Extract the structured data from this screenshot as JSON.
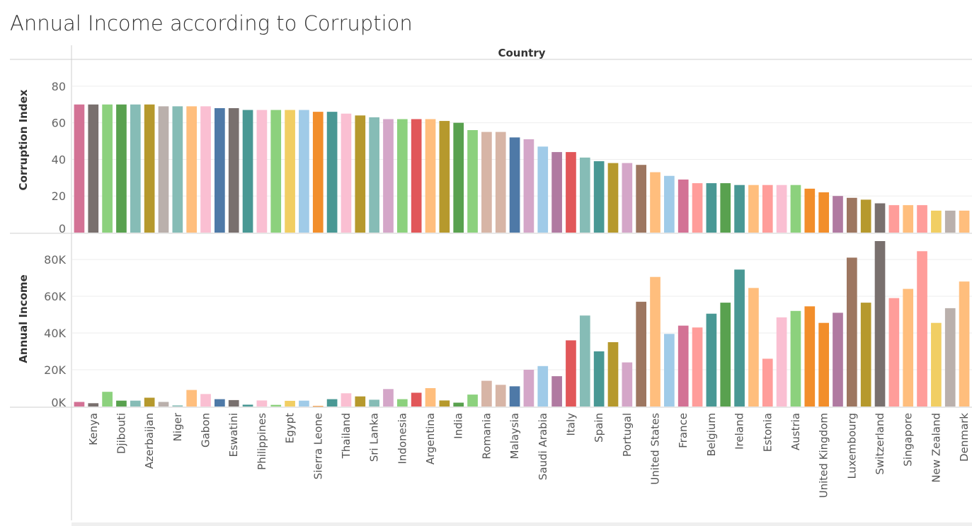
{
  "chart_data": {
    "type": "bar",
    "title": "Annual Income according to Corruption",
    "column_header": "Country",
    "ylabel_top": "Corruption Index",
    "ylabel_bottom": "Annual Income",
    "top_yticks": [
      "0",
      "20",
      "40",
      "60",
      "80"
    ],
    "bottom_yticks": [
      "0K",
      "20K",
      "40K",
      "60K",
      "80K"
    ],
    "top_ylim": [
      0,
      90
    ],
    "bottom_ylim": [
      0,
      90000
    ],
    "labeled_countries": [
      "Kenya",
      "Djibouti",
      "Azerbaijan",
      "Niger",
      "Gabon",
      "Eswatini",
      "Philippines",
      "Egypt",
      "Sierra Leone",
      "Thailand",
      "Sri Lanka",
      "Indonesia",
      "Argentina",
      "India",
      "Romania",
      "Malaysia",
      "Saudi Arabia",
      "Italy",
      "Spain",
      "Portugal",
      "United States",
      "France",
      "Belgium",
      "Ireland",
      "Estonia",
      "Austria",
      "United Kingdom",
      "Luxembourg",
      "Switzerland",
      "Singapore",
      "New Zealand",
      "Denmark"
    ],
    "bars": [
      {
        "corruption": 70,
        "income": 2500,
        "color": "#d37295"
      },
      {
        "corruption": 70,
        "income": 1800,
        "color": "#79706e"
      },
      {
        "corruption": 70,
        "income": 8000,
        "color": "#8cd17d"
      },
      {
        "corruption": 70,
        "income": 3200,
        "color": "#59a14f"
      },
      {
        "corruption": 70,
        "income": 3200,
        "color": "#86bcb6"
      },
      {
        "corruption": 70,
        "income": 4800,
        "color": "#b6992d"
      },
      {
        "corruption": 69,
        "income": 2500,
        "color": "#bab0ac"
      },
      {
        "corruption": 69,
        "income": 600,
        "color": "#86bcb6"
      },
      {
        "corruption": 69,
        "income": 9000,
        "color": "#ffbe7d"
      },
      {
        "corruption": 69,
        "income": 6800,
        "color": "#fabfd2"
      },
      {
        "corruption": 68,
        "income": 4000,
        "color": "#4e79a7"
      },
      {
        "corruption": 68,
        "income": 3500,
        "color": "#79706e"
      },
      {
        "corruption": 67,
        "income": 1000,
        "color": "#499894"
      },
      {
        "corruption": 67,
        "income": 3300,
        "color": "#fabfd2"
      },
      {
        "corruption": 67,
        "income": 900,
        "color": "#8cd17d"
      },
      {
        "corruption": 67,
        "income": 3100,
        "color": "#f1ce63"
      },
      {
        "corruption": 67,
        "income": 3200,
        "color": "#a0cbe8"
      },
      {
        "corruption": 66,
        "income": 300,
        "color": "#f28e2b"
      },
      {
        "corruption": 66,
        "income": 4000,
        "color": "#499894"
      },
      {
        "corruption": 65,
        "income": 7200,
        "color": "#fabfd2"
      },
      {
        "corruption": 64,
        "income": 5500,
        "color": "#b6992d"
      },
      {
        "corruption": 63,
        "income": 3700,
        "color": "#86bcb6"
      },
      {
        "corruption": 62,
        "income": 9500,
        "color": "#d4a6c8"
      },
      {
        "corruption": 62,
        "income": 4000,
        "color": "#8cd17d"
      },
      {
        "corruption": 62,
        "income": 7500,
        "color": "#e15759"
      },
      {
        "corruption": 62,
        "income": 10000,
        "color": "#ffbe7d"
      },
      {
        "corruption": 61,
        "income": 3300,
        "color": "#b6992d"
      },
      {
        "corruption": 60,
        "income": 2100,
        "color": "#59a14f"
      },
      {
        "corruption": 56,
        "income": 6500,
        "color": "#8cd17d"
      },
      {
        "corruption": 55,
        "income": 14000,
        "color": "#d7b5a6"
      },
      {
        "corruption": 55,
        "income": 11800,
        "color": "#d7b5a6"
      },
      {
        "corruption": 52,
        "income": 11000,
        "color": "#4e79a7"
      },
      {
        "corruption": 51,
        "income": 20000,
        "color": "#d4a6c8"
      },
      {
        "corruption": 47,
        "income": 22000,
        "color": "#a0cbe8"
      },
      {
        "corruption": 44,
        "income": 16500,
        "color": "#b07aa1"
      },
      {
        "corruption": 44,
        "income": 36000,
        "color": "#e15759"
      },
      {
        "corruption": 41,
        "income": 49500,
        "color": "#86bcb6"
      },
      {
        "corruption": 39,
        "income": 30000,
        "color": "#499894"
      },
      {
        "corruption": 38,
        "income": 35000,
        "color": "#b6992d"
      },
      {
        "corruption": 38,
        "income": 24000,
        "color": "#d4a6c8"
      },
      {
        "corruption": 37,
        "income": 57000,
        "color": "#9d7660"
      },
      {
        "corruption": 33,
        "income": 70500,
        "color": "#ffbe7d"
      },
      {
        "corruption": 31,
        "income": 39500,
        "color": "#a0cbe8"
      },
      {
        "corruption": 29,
        "income": 44000,
        "color": "#d37295"
      },
      {
        "corruption": 27,
        "income": 43000,
        "color": "#ff9d9a"
      },
      {
        "corruption": 27,
        "income": 50500,
        "color": "#499894"
      },
      {
        "corruption": 27,
        "income": 56500,
        "color": "#59a14f"
      },
      {
        "corruption": 26,
        "income": 74500,
        "color": "#499894"
      },
      {
        "corruption": 26,
        "income": 64500,
        "color": "#ffbe7d"
      },
      {
        "corruption": 26,
        "income": 26000,
        "color": "#ff9d9a"
      },
      {
        "corruption": 26,
        "income": 48500,
        "color": "#fabfd2"
      },
      {
        "corruption": 26,
        "income": 52000,
        "color": "#8cd17d"
      },
      {
        "corruption": 24,
        "income": 54500,
        "color": "#f28e2b"
      },
      {
        "corruption": 22,
        "income": 45500,
        "color": "#f28e2b"
      },
      {
        "corruption": 20,
        "income": 51000,
        "color": "#b07aa1"
      },
      {
        "corruption": 19,
        "income": 81000,
        "color": "#9d7660"
      },
      {
        "corruption": 18,
        "income": 56500,
        "color": "#b6992d"
      },
      {
        "corruption": 16,
        "income": 90000,
        "color": "#79706e"
      },
      {
        "corruption": 15,
        "income": 59000,
        "color": "#ff9d9a"
      },
      {
        "corruption": 15,
        "income": 64000,
        "color": "#ffbe7d"
      },
      {
        "corruption": 15,
        "income": 84500,
        "color": "#ff9d9a"
      },
      {
        "corruption": 12,
        "income": 45500,
        "color": "#f1ce63"
      },
      {
        "corruption": 12,
        "income": 53500,
        "color": "#bab0ac"
      },
      {
        "corruption": 12,
        "income": 68000,
        "color": "#ffbe7d"
      }
    ]
  }
}
